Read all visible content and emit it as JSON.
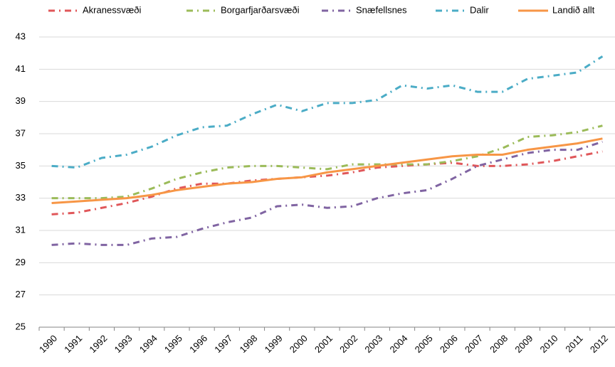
{
  "chart_data": {
    "type": "line",
    "categories": [
      "1990",
      "1991",
      "1992",
      "1993",
      "1994",
      "1995",
      "1996",
      "1997",
      "1998",
      "1999",
      "2000",
      "2001",
      "2002",
      "2003",
      "2004",
      "2005",
      "2006",
      "2007",
      "2008",
      "2009",
      "2010",
      "2011",
      "2012"
    ],
    "series": [
      {
        "name": "Akranessvæði",
        "color": "#e0575a",
        "style": "dash-dot",
        "values": [
          32.0,
          32.1,
          32.4,
          32.7,
          33.1,
          33.6,
          33.9,
          33.9,
          34.1,
          34.2,
          34.3,
          34.4,
          34.6,
          34.9,
          35.0,
          35.1,
          35.2,
          35.0,
          35.0,
          35.1,
          35.3,
          35.6,
          35.9
        ]
      },
      {
        "name": "Borgarfjarðarsvæði",
        "color": "#9bbb59",
        "style": "dash-dot",
        "values": [
          33.0,
          33.0,
          33.0,
          33.1,
          33.6,
          34.2,
          34.6,
          34.9,
          35.0,
          35.0,
          34.9,
          34.8,
          35.1,
          35.1,
          35.1,
          35.1,
          35.3,
          35.6,
          36.1,
          36.8,
          36.9,
          37.1,
          37.5
        ]
      },
      {
        "name": "Snæfellsnes",
        "color": "#8064a2",
        "style": "dash-dot",
        "values": [
          30.1,
          30.2,
          30.1,
          30.1,
          30.5,
          30.6,
          31.1,
          31.5,
          31.8,
          32.5,
          32.6,
          32.4,
          32.5,
          33.0,
          33.3,
          33.5,
          34.2,
          35.0,
          35.4,
          35.8,
          36.0,
          36.0,
          36.5
        ]
      },
      {
        "name": "Dalir",
        "color": "#4bacc6",
        "style": "dash-dot",
        "values": [
          35.0,
          34.9,
          35.5,
          35.7,
          36.2,
          36.9,
          37.4,
          37.5,
          38.2,
          38.8,
          38.4,
          38.9,
          38.9,
          39.1,
          40.0,
          39.8,
          40.0,
          39.6,
          39.6,
          40.4,
          40.6,
          40.8,
          41.8
        ]
      },
      {
        "name": "Landið allt",
        "color": "#f79646",
        "style": "solid",
        "values": [
          32.7,
          32.8,
          32.9,
          33.0,
          33.2,
          33.5,
          33.7,
          33.9,
          34.0,
          34.2,
          34.3,
          34.6,
          34.8,
          35.0,
          35.2,
          35.4,
          35.6,
          35.7,
          35.7,
          36.0,
          36.2,
          36.4,
          36.7
        ]
      }
    ],
    "ylim": [
      25,
      43
    ],
    "yticks": [
      25,
      27,
      29,
      31,
      33,
      35,
      37,
      39,
      41,
      43
    ],
    "grid": true,
    "legend": "top"
  }
}
